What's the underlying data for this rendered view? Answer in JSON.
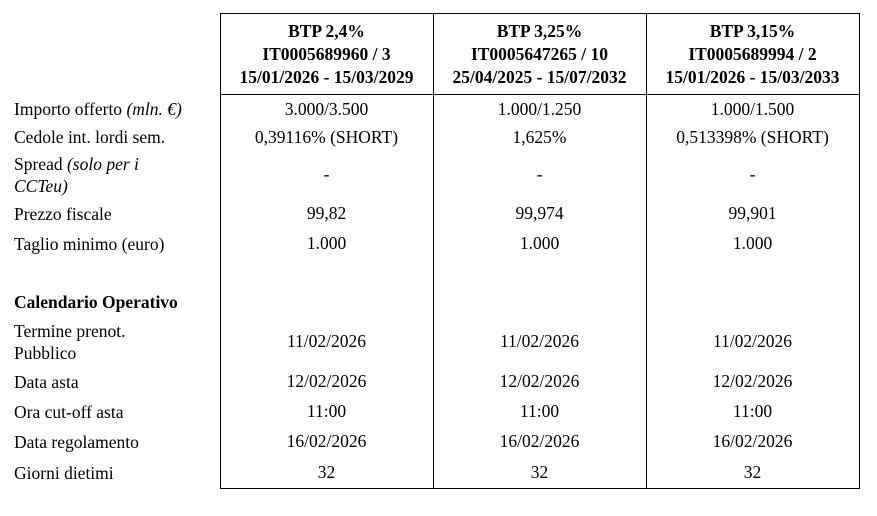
{
  "columns": [
    {
      "title": "BTP 2,4%",
      "isin": "IT0005689960 / 3",
      "period": "15/01/2026 - 15/03/2029"
    },
    {
      "title": "BTP 3,25%",
      "isin": "IT0005647265 / 10",
      "period": "25/04/2025 - 15/07/2032"
    },
    {
      "title": "BTP 3,15%",
      "isin": "IT0005689994 / 2",
      "period": "15/01/2026 - 15/03/2033"
    }
  ],
  "rows": {
    "importo": {
      "label": "Importo offerto",
      "label_em": "(mln. €)",
      "values": [
        "3.000/3.500",
        "1.000/1.250",
        "1.000/1.500"
      ]
    },
    "cedole": {
      "label": "Cedole int. lordi sem.",
      "values": [
        "0,39116% (SHORT)",
        "1,625%",
        "0,513398% (SHORT)"
      ]
    },
    "spread": {
      "label": "Spread",
      "label_em": "(solo per i",
      "label_em2": "CCTeu)",
      "values": [
        "-",
        "-",
        "-"
      ]
    },
    "prezzo": {
      "label": "Prezzo fiscale",
      "values": [
        "99,82",
        "99,974",
        "99,901"
      ]
    },
    "taglio": {
      "label": "Taglio minimo (euro)",
      "values": [
        "1.000",
        "1.000",
        "1.000"
      ]
    },
    "section_title": "Calendario Operativo",
    "termine": {
      "label": "Termine prenot.",
      "label2": "Pubblico",
      "values": [
        "11/02/2026",
        "11/02/2026",
        "11/02/2026"
      ]
    },
    "asta": {
      "label": "Data asta",
      "values": [
        "12/02/2026",
        "12/02/2026",
        "12/02/2026"
      ]
    },
    "cutoff": {
      "label": "Ora cut-off asta",
      "values": [
        "11:00",
        "11:00",
        "11:00"
      ]
    },
    "regolamento": {
      "label": "Data regolamento",
      "values": [
        "16/02/2026",
        "16/02/2026",
        "16/02/2026"
      ]
    },
    "dietimi": {
      "label": "Giorni dietimi",
      "values": [
        "32",
        "32",
        "32"
      ]
    }
  }
}
